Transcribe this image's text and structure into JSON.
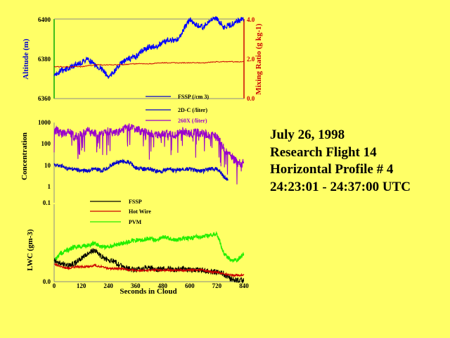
{
  "flight_info": {
    "date": "July 26, 1998",
    "flight": "Research Flight 14",
    "profile": "Horizontal Profile # 4",
    "time_range": "24:23:01 - 24:37:00 UTC"
  },
  "colors": {
    "background": "#ffff66",
    "altitude": "#0000ff",
    "mixing_ratio": "#cc0000",
    "fssp_conc": "#0000cc",
    "c2dc": "#9900cc",
    "fssp_lwc": "#000000",
    "hotwire": "#cc0000",
    "pvm": "#22ee00",
    "axis_left_top": "#00aa00",
    "axis_right_top": "#cc0000"
  },
  "chart_data": [
    {
      "type": "line",
      "ylabel": "Altitude (m)",
      "ylabel_right": "Mixing Ratio (g kg-1)",
      "yticks": [
        "6400",
        "6380",
        "6360"
      ],
      "yticks_right": [
        "4.0",
        "2.0",
        "0.0"
      ],
      "ylim": [
        6360,
        6400
      ],
      "ylim_right": [
        0,
        4
      ],
      "xlim": [
        0,
        840
      ],
      "legend_labels": [
        "FSSP (/cm 3)",
        "2D-C (/liter)",
        "260X (/liter)"
      ],
      "series": [
        {
          "name": "Altitude",
          "axis": "left",
          "x": [
            0,
            30,
            60,
            90,
            120,
            150,
            180,
            210,
            240,
            270,
            300,
            330,
            360,
            390,
            420,
            450,
            480,
            510,
            540,
            570,
            600,
            630,
            660,
            690,
            720,
            750,
            780,
            810,
            840
          ],
          "values": [
            6371,
            6374,
            6375,
            6377,
            6378,
            6380,
            6377,
            6375,
            6371,
            6374,
            6378,
            6380,
            6381,
            6384,
            6386,
            6386,
            6388,
            6390,
            6389,
            6394,
            6400,
            6397,
            6396,
            6399,
            6400,
            6396,
            6397,
            6399,
            6400
          ]
        },
        {
          "name": "Mixing Ratio",
          "axis": "right",
          "x": [
            0,
            60,
            120,
            180,
            240,
            300,
            360,
            420,
            480,
            540,
            600,
            660,
            720,
            780,
            840
          ],
          "values": [
            1.6,
            1.6,
            1.6,
            1.7,
            1.7,
            1.7,
            1.75,
            1.75,
            1.8,
            1.8,
            1.8,
            1.8,
            1.85,
            1.85,
            1.85
          ]
        }
      ]
    },
    {
      "type": "line",
      "ylabel": "Concentration",
      "yticks": [
        "1000",
        "100",
        "10",
        "1",
        "0.1"
      ],
      "ylim": [
        0.1,
        1000
      ],
      "xlim": [
        0,
        840
      ],
      "series": [
        {
          "name": "FSSP",
          "x": [
            0,
            30,
            60,
            90,
            120,
            150,
            180,
            210,
            240,
            270,
            300,
            330,
            360,
            390,
            420,
            450,
            480,
            510,
            540,
            570,
            600,
            630,
            660,
            690,
            720,
            750,
            770
          ],
          "values": [
            8,
            7,
            5,
            5,
            4,
            4,
            5,
            4,
            6,
            10,
            12,
            11,
            6,
            5,
            5,
            4,
            4,
            5,
            4,
            5,
            5,
            4,
            4,
            5,
            5,
            2,
            1.5
          ]
        },
        {
          "name": "2D-C",
          "x": [
            0,
            30,
            60,
            90,
            120,
            150,
            180,
            210,
            240,
            270,
            300,
            330,
            360,
            390,
            420,
            450,
            480,
            510,
            540,
            570,
            600,
            630,
            660,
            690,
            720,
            750,
            780,
            810,
            840
          ],
          "values": [
            500,
            300,
            400,
            200,
            300,
            400,
            300,
            250,
            400,
            300,
            500,
            600,
            500,
            400,
            300,
            250,
            300,
            300,
            250,
            400,
            300,
            350,
            300,
            250,
            200,
            50,
            20,
            10,
            10
          ]
        }
      ]
    },
    {
      "type": "line",
      "ylabel": "LWC (gm-3)",
      "xlabel": "Seconds in Cloud",
      "yticks": [
        "0.0"
      ],
      "ylim": [
        0,
        1
      ],
      "xlim": [
        0,
        840
      ],
      "xticks": [
        0,
        120,
        240,
        360,
        480,
        600,
        720,
        840
      ],
      "legend_labels": [
        "FSSP",
        "Hot Wire",
        "PVM"
      ],
      "series": [
        {
          "name": "FSSP",
          "x": [
            0,
            30,
            60,
            90,
            120,
            150,
            180,
            210,
            240,
            270,
            300,
            330,
            360,
            390,
            420,
            450,
            480,
            510,
            540,
            570,
            600,
            630,
            660,
            690,
            720,
            750,
            780,
            810,
            840
          ],
          "values": [
            0.12,
            0.1,
            0.09,
            0.1,
            0.13,
            0.16,
            0.18,
            0.14,
            0.12,
            0.11,
            0.08,
            0.07,
            0.06,
            0.07,
            0.08,
            0.06,
            0.07,
            0.07,
            0.06,
            0.07,
            0.06,
            0.06,
            0.06,
            0.05,
            0.05,
            0.04,
            0.01,
            0.0,
            0.0
          ]
        },
        {
          "name": "Hot Wire",
          "x": [
            0,
            30,
            60,
            90,
            120,
            150,
            180,
            210,
            240,
            270,
            300,
            330,
            360,
            390,
            420,
            450,
            480,
            510,
            540,
            570,
            600,
            630,
            660,
            690,
            720,
            750,
            780,
            810,
            840
          ],
          "values": [
            0.1,
            0.08,
            0.07,
            0.08,
            0.08,
            0.08,
            0.09,
            0.08,
            0.07,
            0.07,
            0.07,
            0.06,
            0.06,
            0.06,
            0.06,
            0.06,
            0.06,
            0.06,
            0.06,
            0.06,
            0.06,
            0.06,
            0.06,
            0.05,
            0.05,
            0.04,
            0.03,
            0.03,
            0.03
          ]
        },
        {
          "name": "PVM",
          "x": [
            0,
            30,
            60,
            90,
            120,
            150,
            180,
            210,
            240,
            270,
            300,
            330,
            360,
            390,
            420,
            450,
            480,
            510,
            540,
            570,
            600,
            630,
            660,
            690,
            720,
            750,
            780,
            810,
            840
          ],
          "values": [
            0.12,
            0.16,
            0.18,
            0.2,
            0.2,
            0.21,
            0.22,
            0.2,
            0.2,
            0.21,
            0.22,
            0.23,
            0.24,
            0.24,
            0.25,
            0.24,
            0.26,
            0.25,
            0.24,
            0.25,
            0.25,
            0.26,
            0.26,
            0.27,
            0.28,
            0.16,
            0.12,
            0.12,
            0.16
          ]
        }
      ]
    }
  ]
}
